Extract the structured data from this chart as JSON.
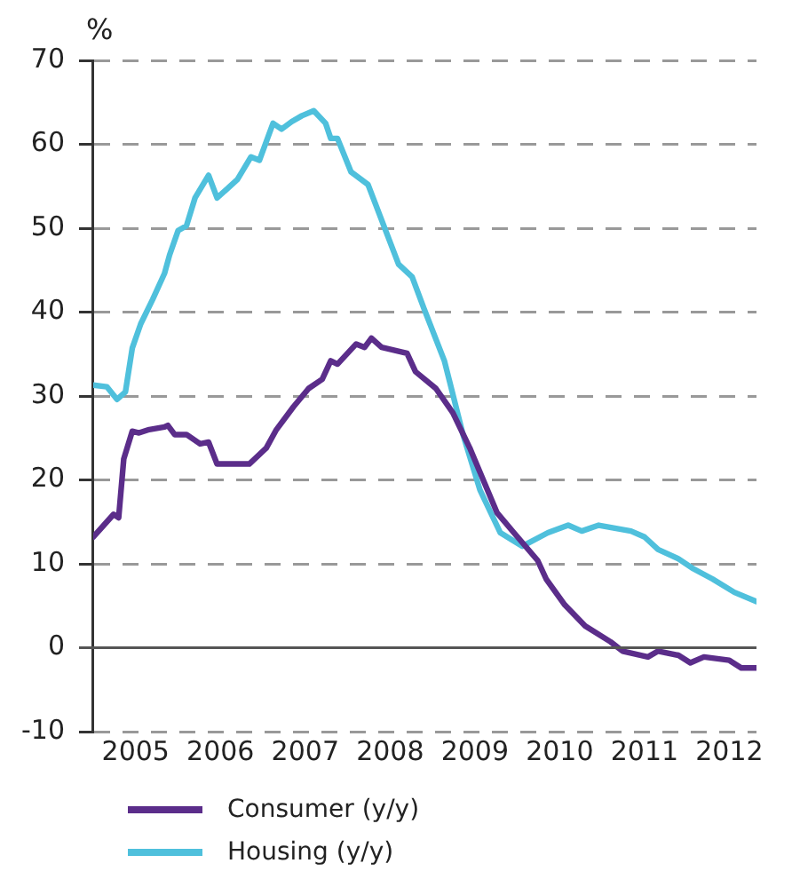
{
  "chart_data": {
    "type": "line",
    "ylabel": "%",
    "xlim": [
      2005,
      2012.82
    ],
    "xticks": [
      {
        "value": 2005.5,
        "label": "2005"
      },
      {
        "value": 2006.5,
        "label": "2006"
      },
      {
        "value": 2007.5,
        "label": "2007"
      },
      {
        "value": 2008.5,
        "label": "2008"
      },
      {
        "value": 2009.5,
        "label": "2009"
      },
      {
        "value": 2010.5,
        "label": "2010"
      },
      {
        "value": 2011.5,
        "label": "2011"
      },
      {
        "value": 2012.5,
        "label": "2012"
      }
    ],
    "ylim": [
      -10,
      70
    ],
    "yticks": [
      -10,
      0,
      10,
      20,
      30,
      40,
      50,
      60,
      70
    ],
    "grid": "y",
    "legend": "bottom",
    "marker": "none",
    "line_style": "solid",
    "ref_lines": [
      {
        "axis": "y",
        "value": 0,
        "color": "#555555"
      }
    ],
    "series": [
      {
        "name": "Consumer (y/y)",
        "color": "#5b2d8a",
        "x": [
          2005.0,
          2005.16,
          2005.24,
          2005.3,
          2005.36,
          2005.46,
          2005.54,
          2005.66,
          2005.84,
          2005.88,
          2005.96,
          2006.1,
          2006.26,
          2006.36,
          2006.46,
          2006.84,
          2007.04,
          2007.16,
          2007.36,
          2007.54,
          2007.7,
          2007.8,
          2007.88,
          2008.1,
          2008.2,
          2008.28,
          2008.4,
          2008.7,
          2008.8,
          2009.04,
          2009.24,
          2009.44,
          2009.76,
          2009.96,
          2010.24,
          2010.34,
          2010.56,
          2010.8,
          2011.1,
          2011.24,
          2011.54,
          2011.66,
          2011.9,
          2012.04,
          2012.2,
          2012.5,
          2012.64,
          2012.82
        ],
        "values": [
          13.2,
          15,
          15.9,
          15.5,
          22.5,
          25.8,
          25.6,
          26,
          26.3,
          26.5,
          25.4,
          25.4,
          24.3,
          24.5,
          21.9,
          21.9,
          23.8,
          26,
          28.7,
          30.9,
          32,
          34.2,
          33.8,
          36.2,
          35.8,
          36.9,
          35.8,
          35.1,
          32.9,
          30.9,
          28,
          23.8,
          16.1,
          13.7,
          10.4,
          8.2,
          5.1,
          2.6,
          0.7,
          -0.4,
          -1.1,
          -0.4,
          -0.9,
          -1.8,
          -1.1,
          -1.5,
          -2.4,
          -2.4
        ]
      },
      {
        "name": "Housing (y/y)",
        "color": "#4fc0dc",
        "x": [
          2005.0,
          2005.16,
          2005.28,
          2005.38,
          2005.46,
          2005.56,
          2005.7,
          2005.84,
          2005.9,
          2006.0,
          2006.1,
          2006.2,
          2006.36,
          2006.46,
          2006.7,
          2006.86,
          2006.96,
          2007.12,
          2007.22,
          2007.34,
          2007.46,
          2007.6,
          2007.74,
          2007.8,
          2007.88,
          2008.04,
          2008.24,
          2008.6,
          2008.76,
          2008.9,
          2009.14,
          2009.36,
          2009.56,
          2009.8,
          2010.06,
          2010.36,
          2010.6,
          2010.76,
          2010.96,
          2011.34,
          2011.5,
          2011.66,
          2011.9,
          2012.06,
          2012.3,
          2012.56,
          2012.82
        ],
        "values": [
          31.3,
          31.1,
          29.6,
          30.5,
          35.7,
          38.6,
          41.5,
          44.6,
          46.8,
          49.7,
          50.3,
          53.6,
          56.3,
          53.6,
          55.8,
          58.5,
          58.1,
          62.5,
          61.8,
          62.7,
          63.4,
          64,
          62.5,
          60.7,
          60.7,
          56.7,
          55.2,
          45.7,
          44.2,
          40.4,
          34.2,
          25.4,
          18.8,
          13.7,
          12.1,
          13.7,
          14.6,
          13.9,
          14.6,
          13.9,
          13.2,
          11.7,
          10.6,
          9.5,
          8.2,
          6.6,
          5.5
        ]
      }
    ]
  }
}
